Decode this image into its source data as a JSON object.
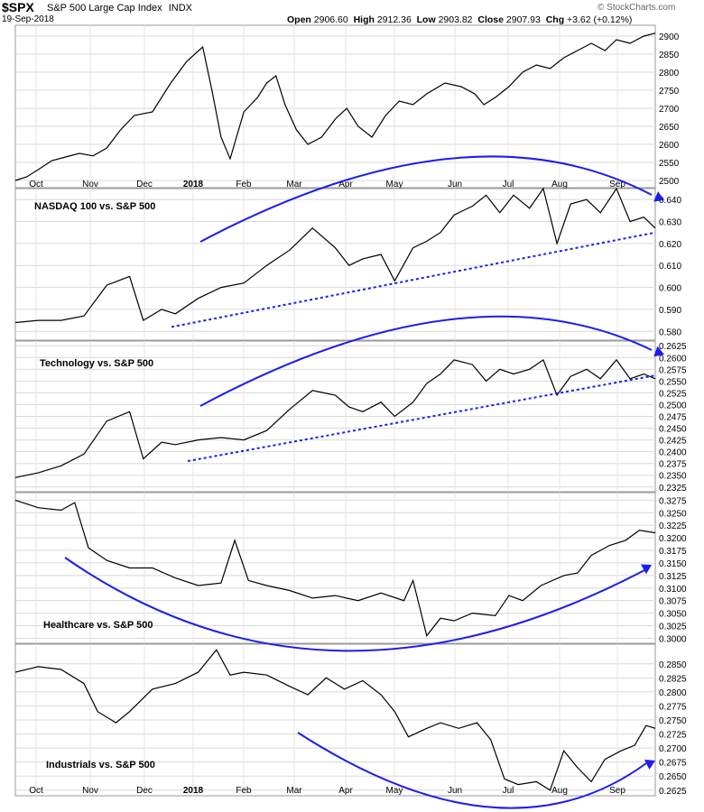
{
  "header": {
    "symbol": "$SPX",
    "name": "S&P 500 Large Cap Index",
    "exchange": "INDX",
    "date": "19-Sep-2018",
    "open_label": "Open",
    "open": "2906.60",
    "high_label": "High",
    "high": "2912.36",
    "low_label": "Low",
    "low": "2903.82",
    "close_label": "Close",
    "close": "2907.93",
    "chg_label": "Chg",
    "chg": "+3.62 (+0.12%)",
    "watermark": "© StockCharts.com"
  },
  "colors": {
    "line": "#000000",
    "annotation": "#1c1cf0",
    "grid": "#d8d8d8",
    "border": "#9a9a9a"
  },
  "chart_data": [
    {
      "type": "line",
      "title": "$SPX S&P 500 Large Cap Index INDX",
      "y_ticks": [
        2500,
        2550,
        2600,
        2650,
        2700,
        2750,
        2800,
        2850,
        2900
      ],
      "ylim": [
        2480,
        2930
      ],
      "x_ticks": [
        "Oct",
        "Nov",
        "Dec",
        "2018",
        "Feb",
        "Mar",
        "Apr",
        "May",
        "Jun",
        "Jul",
        "Aug",
        "Sep"
      ],
      "points": [
        [
          0,
          2500
        ],
        [
          0.5,
          2510
        ],
        [
          1,
          2530
        ],
        [
          1.6,
          2555
        ],
        [
          2.2,
          2565
        ],
        [
          2.8,
          2575
        ],
        [
          3.4,
          2568
        ],
        [
          4,
          2590
        ],
        [
          4.6,
          2640
        ],
        [
          5.2,
          2680
        ],
        [
          6,
          2690
        ],
        [
          6.8,
          2770
        ],
        [
          7.5,
          2830
        ],
        [
          8.2,
          2870
        ],
        [
          8.6,
          2750
        ],
        [
          9,
          2620
        ],
        [
          9.4,
          2560
        ],
        [
          10,
          2690
        ],
        [
          10.6,
          2730
        ],
        [
          11,
          2770
        ],
        [
          11.4,
          2790
        ],
        [
          11.8,
          2710
        ],
        [
          12.3,
          2640
        ],
        [
          12.8,
          2600
        ],
        [
          13.4,
          2620
        ],
        [
          14,
          2670
        ],
        [
          14.5,
          2700
        ],
        [
          15,
          2650
        ],
        [
          15.6,
          2620
        ],
        [
          16.2,
          2680
        ],
        [
          16.8,
          2720
        ],
        [
          17.4,
          2710
        ],
        [
          18,
          2740
        ],
        [
          18.8,
          2770
        ],
        [
          19.5,
          2760
        ],
        [
          20.1,
          2740
        ],
        [
          20.5,
          2710
        ],
        [
          21,
          2730
        ],
        [
          21.6,
          2760
        ],
        [
          22.2,
          2800
        ],
        [
          22.8,
          2820
        ],
        [
          23.4,
          2810
        ],
        [
          24,
          2840
        ],
        [
          24.6,
          2860
        ],
        [
          25.2,
          2880
        ],
        [
          25.8,
          2860
        ],
        [
          26.3,
          2890
        ],
        [
          26.9,
          2880
        ],
        [
          27.5,
          2900
        ],
        [
          28,
          2908
        ]
      ]
    },
    {
      "type": "line",
      "title": "NASDAQ 100 vs. S&P 500",
      "y_ticks": [
        0.58,
        0.59,
        0.6,
        0.61,
        0.62,
        0.63,
        0.64
      ],
      "ylim": [
        0.576,
        0.645
      ],
      "points": [
        [
          0,
          0.584
        ],
        [
          1,
          0.585
        ],
        [
          2,
          0.585
        ],
        [
          3,
          0.587
        ],
        [
          4,
          0.601
        ],
        [
          5,
          0.605
        ],
        [
          5.6,
          0.585
        ],
        [
          6.4,
          0.59
        ],
        [
          7,
          0.588
        ],
        [
          8,
          0.595
        ],
        [
          9,
          0.6
        ],
        [
          10,
          0.602
        ],
        [
          11,
          0.61
        ],
        [
          12,
          0.617
        ],
        [
          13,
          0.627
        ],
        [
          14,
          0.618
        ],
        [
          14.6,
          0.61
        ],
        [
          15.2,
          0.613
        ],
        [
          16,
          0.615
        ],
        [
          16.6,
          0.603
        ],
        [
          17.4,
          0.618
        ],
        [
          18,
          0.621
        ],
        [
          18.6,
          0.625
        ],
        [
          19.2,
          0.633
        ],
        [
          20,
          0.637
        ],
        [
          20.6,
          0.642
        ],
        [
          21.2,
          0.634
        ],
        [
          21.8,
          0.642
        ],
        [
          22.5,
          0.636
        ],
        [
          23.1,
          0.645
        ],
        [
          23.7,
          0.62
        ],
        [
          24.3,
          0.638
        ],
        [
          25,
          0.64
        ],
        [
          25.6,
          0.634
        ],
        [
          26.3,
          0.645
        ],
        [
          26.9,
          0.63
        ],
        [
          27.5,
          0.632
        ],
        [
          28,
          0.627
        ]
      ],
      "trendline": {
        "start": 0.582,
        "end": 0.625,
        "style": "dotted"
      },
      "arc": {
        "label": "curved arrow above panel",
        "direction": "down-right"
      }
    },
    {
      "type": "line",
      "title": "Technology vs. S&P 500",
      "y_ticks": [
        0.2325,
        0.235,
        0.2375,
        0.24,
        0.2425,
        0.245,
        0.2475,
        0.25,
        0.2525,
        0.255,
        0.2575,
        0.26,
        0.2625
      ],
      "ylim": [
        0.2315,
        0.2635
      ],
      "points": [
        [
          0,
          0.2345
        ],
        [
          1,
          0.2355
        ],
        [
          2,
          0.237
        ],
        [
          3,
          0.2395
        ],
        [
          4,
          0.2465
        ],
        [
          5,
          0.2485
        ],
        [
          5.6,
          0.2385
        ],
        [
          6.4,
          0.242
        ],
        [
          7,
          0.2415
        ],
        [
          8,
          0.2425
        ],
        [
          9,
          0.243
        ],
        [
          10,
          0.2425
        ],
        [
          11,
          0.2445
        ],
        [
          12,
          0.249
        ],
        [
          13,
          0.253
        ],
        [
          14,
          0.252
        ],
        [
          14.6,
          0.2495
        ],
        [
          15.2,
          0.2485
        ],
        [
          16,
          0.2505
        ],
        [
          16.6,
          0.2475
        ],
        [
          17.4,
          0.2505
        ],
        [
          18,
          0.2545
        ],
        [
          18.6,
          0.2565
        ],
        [
          19.2,
          0.2595
        ],
        [
          20,
          0.2585
        ],
        [
          20.6,
          0.255
        ],
        [
          21.2,
          0.2575
        ],
        [
          21.8,
          0.2565
        ],
        [
          22.5,
          0.2575
        ],
        [
          23.1,
          0.2595
        ],
        [
          23.7,
          0.252
        ],
        [
          24.3,
          0.256
        ],
        [
          25,
          0.2575
        ],
        [
          25.6,
          0.2555
        ],
        [
          26.3,
          0.2595
        ],
        [
          26.9,
          0.2555
        ],
        [
          27.5,
          0.2565
        ],
        [
          28,
          0.2555
        ]
      ],
      "trendline": {
        "start": 0.238,
        "end": 0.2562,
        "style": "dotted"
      },
      "arc": {
        "label": "curved arrow above panel",
        "direction": "down-right"
      }
    },
    {
      "type": "line",
      "title": "Healthcare vs. S&P 500",
      "y_ticks": [
        0.3,
        0.3025,
        0.305,
        0.3075,
        0.31,
        0.3125,
        0.315,
        0.3175,
        0.32,
        0.3225,
        0.325,
        0.3275
      ],
      "ylim": [
        0.299,
        0.329
      ],
      "points": [
        [
          0,
          0.3275
        ],
        [
          1,
          0.326
        ],
        [
          2,
          0.3255
        ],
        [
          2.6,
          0.327
        ],
        [
          3.2,
          0.318
        ],
        [
          4,
          0.3155
        ],
        [
          5,
          0.314
        ],
        [
          6,
          0.314
        ],
        [
          7,
          0.312
        ],
        [
          8,
          0.3105
        ],
        [
          9,
          0.311
        ],
        [
          9.6,
          0.3195
        ],
        [
          10.2,
          0.3115
        ],
        [
          11,
          0.3105
        ],
        [
          12,
          0.3095
        ],
        [
          13,
          0.308
        ],
        [
          14,
          0.3085
        ],
        [
          15,
          0.3075
        ],
        [
          16,
          0.309
        ],
        [
          17,
          0.3075
        ],
        [
          17.4,
          0.3115
        ],
        [
          18,
          0.3005
        ],
        [
          18.6,
          0.304
        ],
        [
          19.2,
          0.3035
        ],
        [
          20,
          0.305
        ],
        [
          21,
          0.3045
        ],
        [
          21.6,
          0.3085
        ],
        [
          22.2,
          0.3075
        ],
        [
          23,
          0.3105
        ],
        [
          24,
          0.3125
        ],
        [
          24.6,
          0.313
        ],
        [
          25.2,
          0.3165
        ],
        [
          26,
          0.3185
        ],
        [
          26.7,
          0.3195
        ],
        [
          27.3,
          0.3215
        ],
        [
          28,
          0.321
        ]
      ],
      "arc": {
        "label": "U-shaped arrow",
        "direction": "up-right"
      }
    },
    {
      "type": "line",
      "title": "Industrials vs. S&P 500",
      "y_ticks": [
        0.2625,
        0.265,
        0.2675,
        0.27,
        0.2725,
        0.275,
        0.2775,
        0.28,
        0.2825,
        0.285
      ],
      "ylim": [
        0.2615,
        0.2885
      ],
      "x_ticks": [
        "Oct",
        "Nov",
        "Dec",
        "2018",
        "Feb",
        "Mar",
        "Apr",
        "May",
        "Jun",
        "Jul",
        "Aug",
        "Sep"
      ],
      "points": [
        [
          0,
          0.2835
        ],
        [
          1,
          0.2845
        ],
        [
          2,
          0.284
        ],
        [
          3,
          0.2815
        ],
        [
          3.6,
          0.2765
        ],
        [
          4.4,
          0.2745
        ],
        [
          5,
          0.2765
        ],
        [
          6,
          0.2805
        ],
        [
          7,
          0.2815
        ],
        [
          8,
          0.2835
        ],
        [
          8.8,
          0.2875
        ],
        [
          9.4,
          0.283
        ],
        [
          10,
          0.2835
        ],
        [
          11,
          0.283
        ],
        [
          12,
          0.281
        ],
        [
          12.8,
          0.2795
        ],
        [
          13.6,
          0.2825
        ],
        [
          14.4,
          0.2805
        ],
        [
          15.2,
          0.282
        ],
        [
          16,
          0.2795
        ],
        [
          16.6,
          0.2765
        ],
        [
          17.2,
          0.272
        ],
        [
          18,
          0.2735
        ],
        [
          18.6,
          0.2745
        ],
        [
          19.4,
          0.2735
        ],
        [
          20.2,
          0.2745
        ],
        [
          20.8,
          0.2715
        ],
        [
          21.4,
          0.2645
        ],
        [
          22,
          0.2635
        ],
        [
          22.8,
          0.264
        ],
        [
          23.4,
          0.2625
        ],
        [
          24,
          0.2695
        ],
        [
          24.6,
          0.2665
        ],
        [
          25.2,
          0.264
        ],
        [
          25.8,
          0.268
        ],
        [
          26.5,
          0.2695
        ],
        [
          27.1,
          0.2705
        ],
        [
          27.6,
          0.274
        ],
        [
          28,
          0.2735
        ]
      ],
      "arc": {
        "label": "U-shaped arrow",
        "direction": "up-right"
      }
    }
  ]
}
